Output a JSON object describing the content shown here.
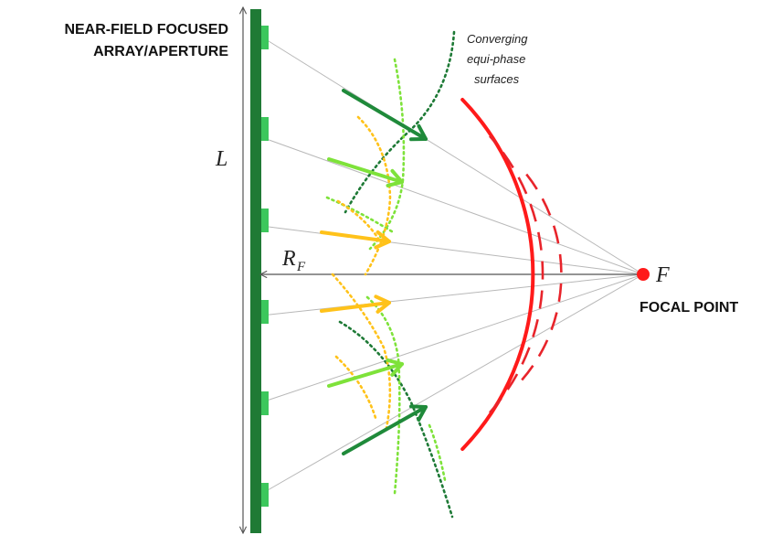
{
  "labels": {
    "array_title_line1": "NEAR-FIELD FOCUSED",
    "array_title_line2": "ARRAY/APERTURE",
    "surfaces_line1": "Converging",
    "surfaces_line2": "equi-phase",
    "surfaces_line3": "surfaces",
    "length_symbol": "L",
    "focal_distance_symbol": "R",
    "focal_distance_subscript": "F",
    "focal_point_symbol": "F",
    "focal_point_label": "FOCAL POINT"
  },
  "colors": {
    "array_bar": "#1f7a35",
    "array_element": "#3cc75c",
    "ray_line": "#b8b8b8",
    "wavefront_solid": "#ff1a1a",
    "wavefront_dashed": "#e8242b",
    "focal_point": "#ff1a1a",
    "arrow_outer": "#1f8a3a",
    "arrow_middle": "#7ee23a",
    "arrow_inner": "#ffc21a",
    "dotted_dark_green": "#1e7a36",
    "dotted_light_green": "#7ee23a",
    "dotted_yellow": "#ffc21a",
    "dimension_line": "#555555"
  }
}
